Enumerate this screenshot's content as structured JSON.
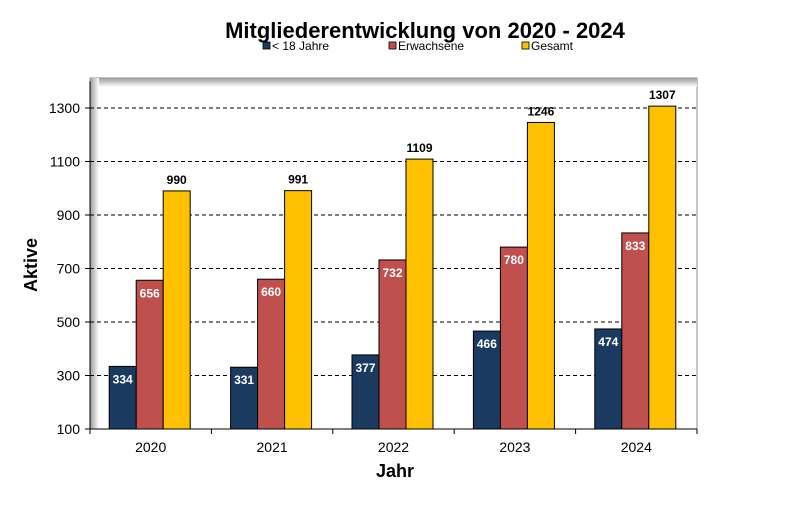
{
  "chart_data": {
    "type": "bar",
    "title": "Mitgliederentwicklung von 2020  - 2024",
    "xlabel": "Jahr",
    "ylabel": "Aktive",
    "categories": [
      "2020",
      "2021",
      "2022",
      "2023",
      "2024"
    ],
    "series": [
      {
        "name": "< 18 Jahre",
        "values": [
          334,
          331,
          377,
          466,
          474
        ],
        "color": "#1b3a60",
        "label_color": "#ffffff"
      },
      {
        "name": "Erwachsene",
        "values": [
          656,
          660,
          732,
          780,
          833
        ],
        "color": "#c0504d",
        "label_color": "#ffffff"
      },
      {
        "name": "Gesamt",
        "values": [
          990,
          991,
          1109,
          1246,
          1307
        ],
        "color": "#ffc000",
        "label_color": "#000000"
      }
    ],
    "ylim": [
      100,
      1400
    ],
    "yticks": [
      100,
      300,
      500,
      700,
      900,
      1100,
      1300
    ],
    "grid": true,
    "legend_position": "top"
  }
}
